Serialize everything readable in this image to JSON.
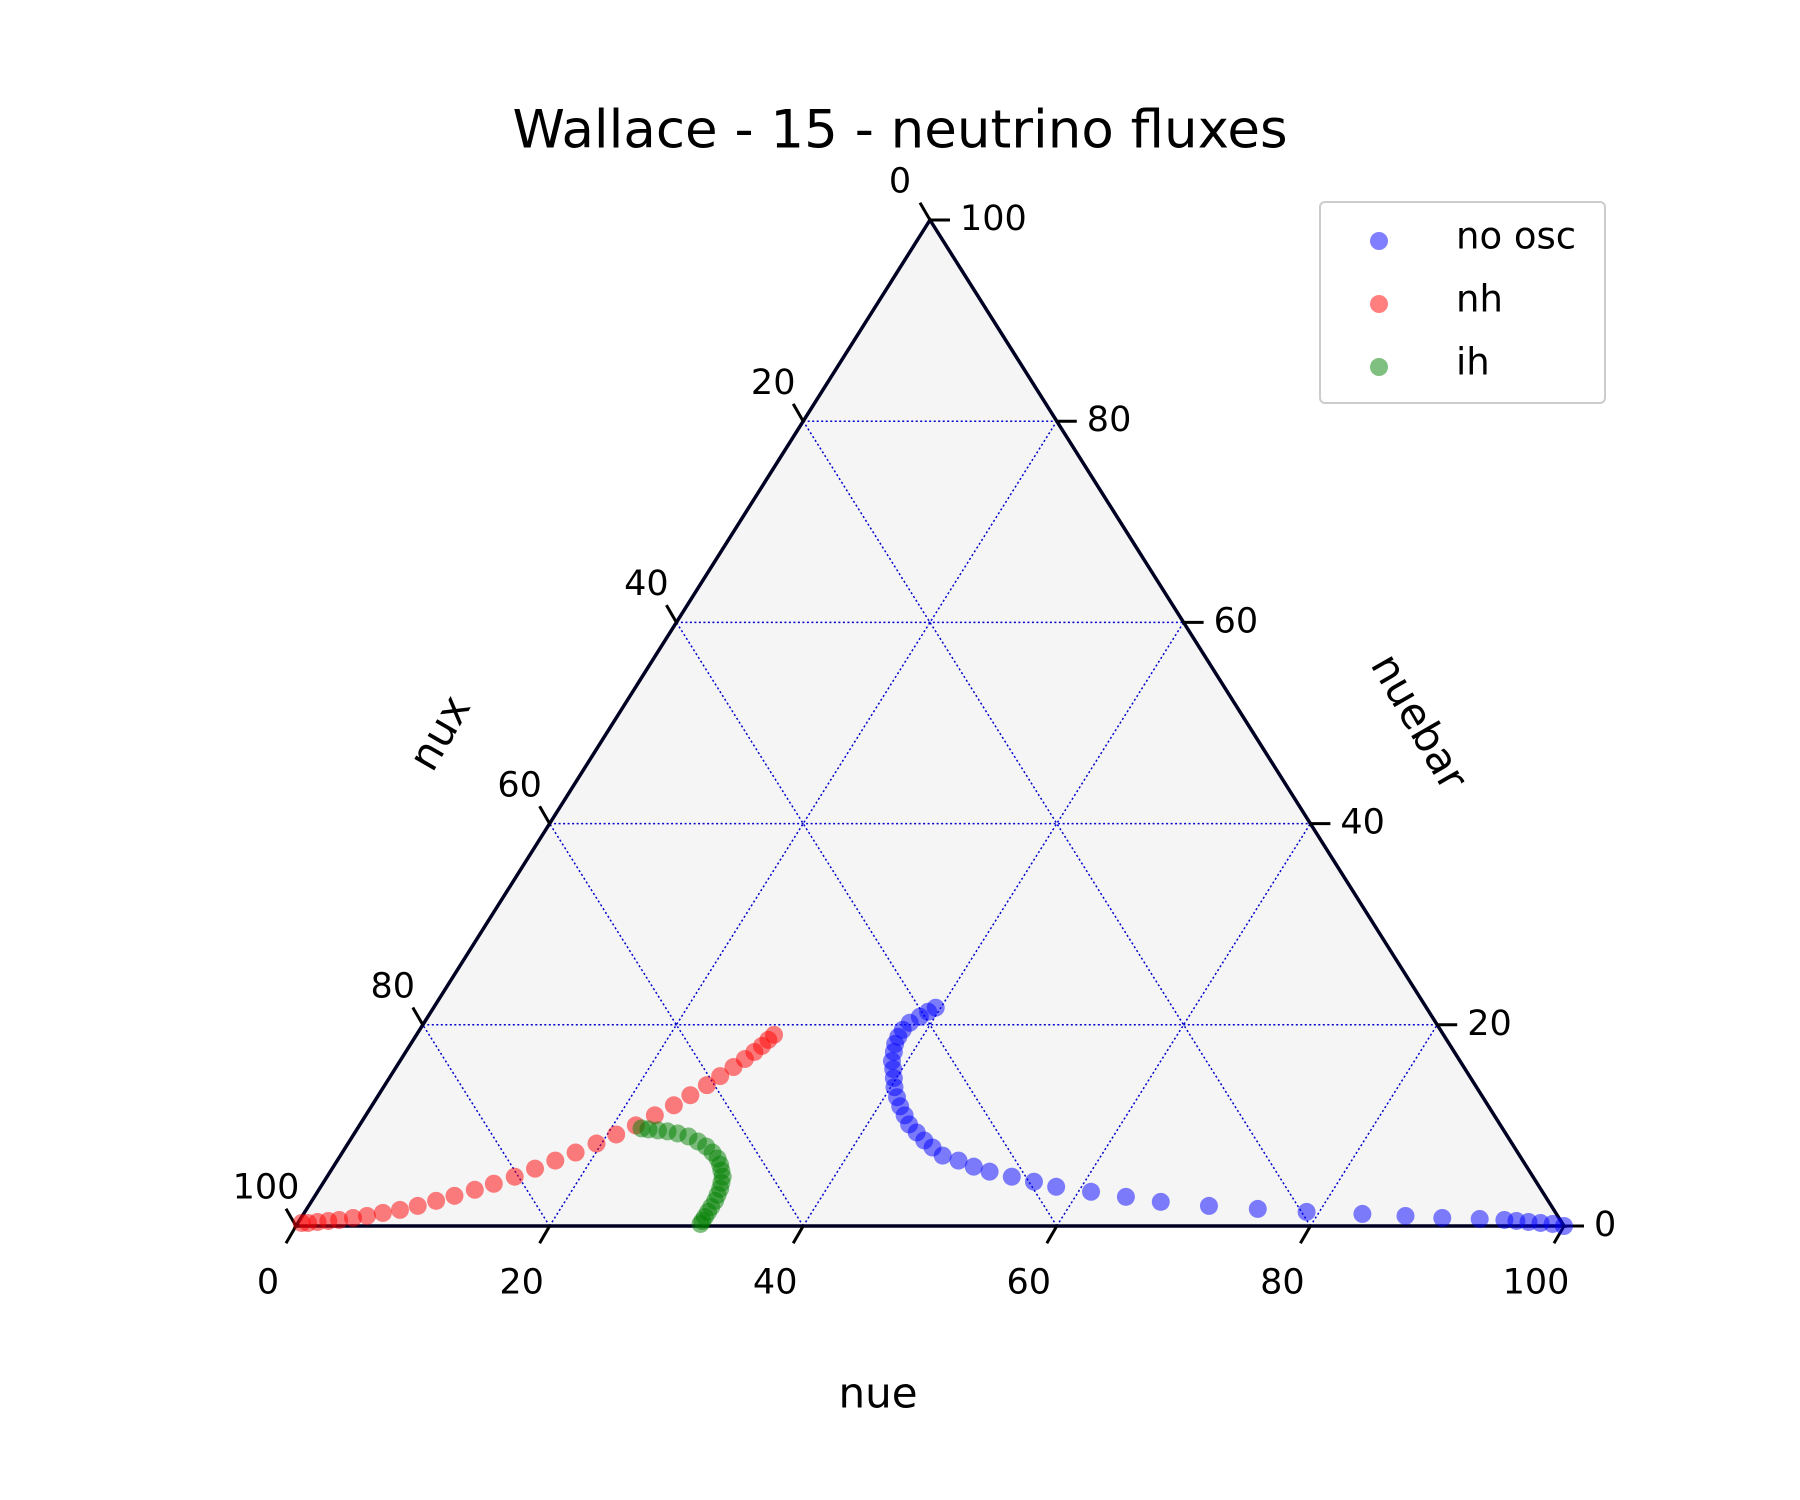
{
  "chart_data": {
    "type": "scatter",
    "subtype": "ternary",
    "title": "Wallace - 15 - neutrino fluxes",
    "axes": {
      "bottom": {
        "label": "nue",
        "ticks": [
          "0",
          "20",
          "40",
          "60",
          "80",
          "100"
        ]
      },
      "right": {
        "label": "nuebar",
        "ticks": [
          "0",
          "20",
          "40",
          "60",
          "80",
          "100"
        ]
      },
      "left": {
        "label": "nux",
        "ticks": [
          "0",
          "20",
          "40",
          "60",
          "80",
          "100"
        ]
      }
    },
    "range": [
      0,
      100
    ],
    "grid": true,
    "grid_color": "#0000cc",
    "plot_background": "#f5f5f6",
    "legend_position": "top-right",
    "series": [
      {
        "name": "no osc",
        "color": "#0000ff",
        "opacity": 0.5,
        "points": [
          [
            100,
            0
          ],
          [
            99,
            0.2
          ],
          [
            98,
            0.3
          ],
          [
            97,
            0.4
          ],
          [
            96,
            0.5
          ],
          [
            95,
            0.6
          ],
          [
            93,
            0.7
          ],
          [
            90,
            0.8
          ],
          [
            87,
            1
          ],
          [
            83.5,
            1.2
          ],
          [
            79,
            1.4
          ],
          [
            75,
            1.7
          ],
          [
            71,
            2
          ],
          [
            67,
            2.4
          ],
          [
            64,
            2.9
          ],
          [
            61,
            3.4
          ],
          [
            58,
            3.9
          ],
          [
            56,
            4.4
          ],
          [
            54,
            4.9
          ],
          [
            52,
            5.4
          ],
          [
            50.5,
            5.9
          ],
          [
            49,
            6.5
          ],
          [
            47.5,
            7
          ],
          [
            46.3,
            7.8
          ],
          [
            45.3,
            8.5
          ],
          [
            44.3,
            9.3
          ],
          [
            43.3,
            10.1
          ],
          [
            42.5,
            11
          ],
          [
            41.7,
            11.9
          ],
          [
            41,
            12.8
          ],
          [
            40.3,
            13.8
          ],
          [
            39.8,
            14.7
          ],
          [
            39.3,
            15.6
          ],
          [
            38.8,
            16.4
          ],
          [
            38.5,
            17.3
          ],
          [
            38.2,
            18.1
          ],
          [
            38.1,
            18.8
          ],
          [
            38.1,
            19.5
          ],
          [
            38.3,
            20.2
          ],
          [
            38.8,
            20.8
          ],
          [
            39.2,
            21.3
          ],
          [
            39.6,
            21.7
          ]
        ]
      },
      {
        "name": "nh",
        "color": "#ff0000",
        "opacity": 0.5,
        "points": [
          [
            0.3,
            0.3
          ],
          [
            0.8,
            0.3
          ],
          [
            1.5,
            0.4
          ],
          [
            2.3,
            0.5
          ],
          [
            3.1,
            0.6
          ],
          [
            4.1,
            0.8
          ],
          [
            5.1,
            1
          ],
          [
            6.2,
            1.3
          ],
          [
            7.4,
            1.6
          ],
          [
            8.6,
            2
          ],
          [
            9.8,
            2.5
          ],
          [
            11,
            3
          ],
          [
            12.3,
            3.6
          ],
          [
            13.5,
            4.2
          ],
          [
            14.8,
            4.9
          ],
          [
            16,
            5.7
          ],
          [
            17.2,
            6.5
          ],
          [
            18.4,
            7.3
          ],
          [
            19.6,
            8.2
          ],
          [
            20.7,
            9.1
          ],
          [
            21.8,
            10
          ],
          [
            22.8,
            11
          ],
          [
            23.8,
            12
          ],
          [
            24.6,
            13
          ],
          [
            25.4,
            14
          ],
          [
            26,
            14.9
          ],
          [
            26.6,
            15.8
          ],
          [
            27.1,
            16.6
          ],
          [
            27.5,
            17.3
          ],
          [
            27.8,
            17.9
          ],
          [
            28,
            18.5
          ],
          [
            28.2,
            19
          ]
        ]
      },
      {
        "name": "ih",
        "color": "#008000",
        "opacity": 0.5,
        "points": [
          [
            31.8,
            0.2
          ],
          [
            31.8,
            0.5
          ],
          [
            31.8,
            0.9
          ],
          [
            31.8,
            1.4
          ],
          [
            31.8,
            1.9
          ],
          [
            31.8,
            2.5
          ],
          [
            31.7,
            3.1
          ],
          [
            31.6,
            3.7
          ],
          [
            31.4,
            4.3
          ],
          [
            31.2,
            4.9
          ],
          [
            30.8,
            5.5
          ],
          [
            30.4,
            6.1
          ],
          [
            29.9,
            6.7
          ],
          [
            29.2,
            7.3
          ],
          [
            28.4,
            7.9
          ],
          [
            27.5,
            8.4
          ],
          [
            26.5,
            8.9
          ],
          [
            25.5,
            9.2
          ],
          [
            24.6,
            9.4
          ],
          [
            23.8,
            9.5
          ],
          [
            23,
            9.6
          ],
          [
            22.4,
            9.7
          ]
        ]
      }
    ]
  }
}
